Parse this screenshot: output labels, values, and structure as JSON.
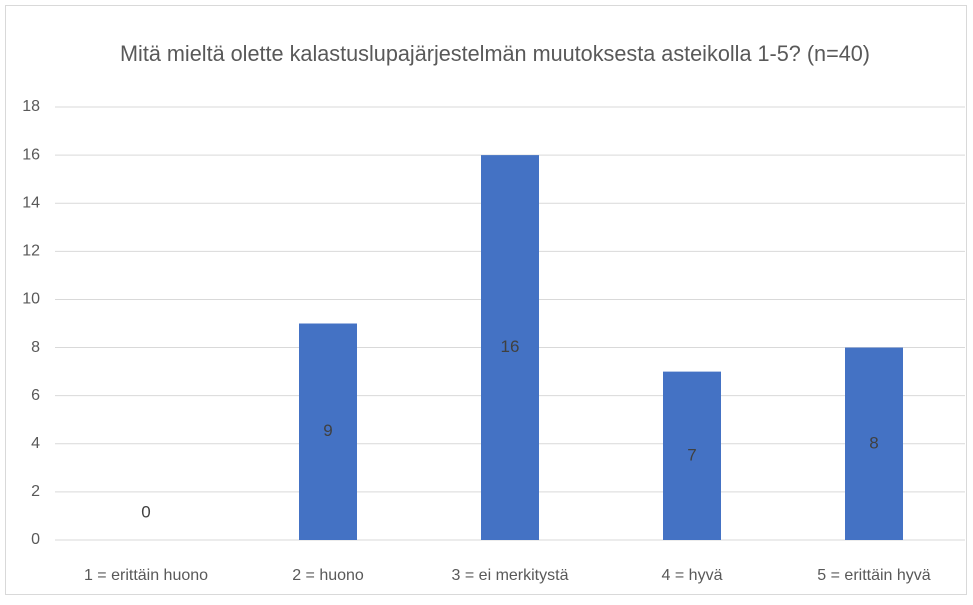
{
  "chart_data": {
    "type": "bar",
    "title": "Mitä mieltä olette kalastuslupajärjestelmän muutoksesta asteikolla 1-5? (n=40)",
    "categories": [
      "1 = erittäin huono",
      "2 = huono",
      "3 = ei merkitystä",
      "4 = hyvä",
      "5 = erittäin hyvä"
    ],
    "values": [
      0,
      9,
      16,
      7,
      8
    ],
    "color": "#4472c4",
    "ylim": [
      0,
      18
    ],
    "yticks": [
      0,
      2,
      4,
      6,
      8,
      10,
      12,
      14,
      16,
      18
    ],
    "grid": true,
    "data_labels": true
  }
}
